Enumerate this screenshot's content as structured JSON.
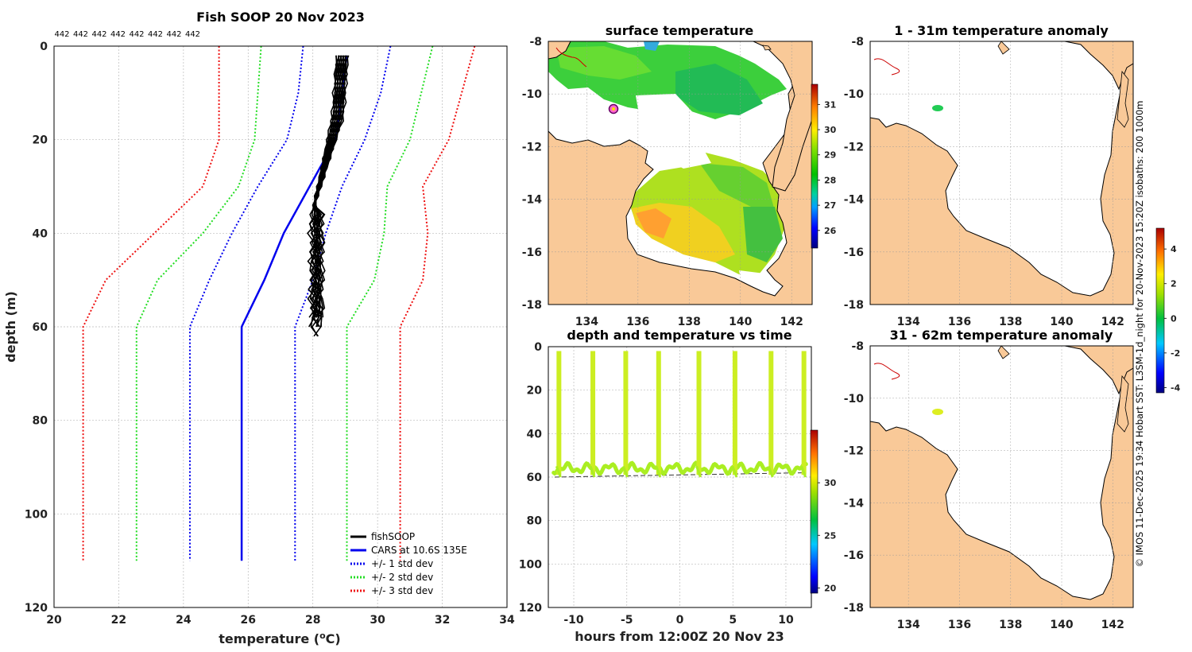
{
  "chart_data": [
    {
      "type": "line",
      "id": "profile",
      "title": "Fish SOOP 20 Nov 2023",
      "xlabel": "temperature (°C)",
      "xlabel_main": "temperature (",
      "xlabel_sup": "o",
      "xlabel_unit": "C)",
      "ylabel": "depth (m)",
      "xlim": [
        20,
        34
      ],
      "ylim": [
        120,
        0
      ],
      "xticks": [
        20,
        22,
        24,
        26,
        28,
        30,
        32,
        34
      ],
      "yticks": [
        0,
        20,
        40,
        60,
        80,
        100,
        120
      ],
      "top_labels": [
        "442",
        "442",
        "442",
        "442",
        "442",
        "442",
        "442",
        "442"
      ],
      "legend": [
        "fishSOOP",
        "CARS at 10.6S 135E",
        "+/- 1 std dev",
        "+/- 2 std dev",
        "+/- 3 std dev"
      ],
      "series": [
        {
          "name": "CARS",
          "color": "#0000ee",
          "points": [
            [
              29.05,
              2
            ],
            [
              28.9,
              10
            ],
            [
              28.7,
              20
            ],
            [
              27.9,
              30
            ],
            [
              27.1,
              40
            ],
            [
              26.5,
              50
            ],
            [
              25.8,
              60
            ],
            [
              25.8,
              110
            ]
          ]
        },
        {
          "name": "+1 std",
          "color": "#0000ee",
          "points": [
            [
              30.4,
              0
            ],
            [
              30.1,
              10
            ],
            [
              29.6,
              20
            ],
            [
              28.9,
              30
            ],
            [
              28.4,
              40
            ],
            [
              28.0,
              50
            ],
            [
              27.45,
              60
            ],
            [
              27.45,
              110
            ]
          ]
        },
        {
          "name": "-1 std",
          "color": "#0000ee",
          "points": [
            [
              27.7,
              0
            ],
            [
              27.55,
              10
            ],
            [
              27.2,
              20
            ],
            [
              26.3,
              30
            ],
            [
              25.5,
              40
            ],
            [
              24.8,
              50
            ],
            [
              24.2,
              60
            ],
            [
              24.2,
              110
            ]
          ]
        },
        {
          "name": "+2 std",
          "color": "#22dd22",
          "points": [
            [
              31.7,
              0
            ],
            [
              31.35,
              10
            ],
            [
              31.0,
              20
            ],
            [
              30.3,
              30
            ],
            [
              30.2,
              40
            ],
            [
              29.9,
              50
            ],
            [
              29.05,
              60
            ],
            [
              29.05,
              110
            ]
          ]
        },
        {
          "name": "-2 std",
          "color": "#22dd22",
          "points": [
            [
              26.4,
              0
            ],
            [
              26.3,
              10
            ],
            [
              26.2,
              20
            ],
            [
              25.7,
              30
            ],
            [
              24.6,
              40
            ],
            [
              23.2,
              50
            ],
            [
              22.55,
              60
            ],
            [
              22.55,
              110
            ]
          ]
        },
        {
          "name": "+3 std",
          "color": "#ee1111",
          "points": [
            [
              33.0,
              0
            ],
            [
              32.6,
              10
            ],
            [
              32.2,
              20
            ],
            [
              31.4,
              30
            ],
            [
              31.55,
              40
            ],
            [
              31.4,
              50
            ],
            [
              30.7,
              60
            ],
            [
              30.7,
              110
            ]
          ]
        },
        {
          "name": "-3 std",
          "color": "#ee1111",
          "points": [
            [
              25.1,
              0
            ],
            [
              25.1,
              10
            ],
            [
              25.1,
              20
            ],
            [
              24.6,
              30
            ],
            [
              23.1,
              40
            ],
            [
              21.6,
              50
            ],
            [
              20.9,
              60
            ],
            [
              20.9,
              110
            ]
          ]
        }
      ]
    },
    {
      "type": "heatmap",
      "id": "surface",
      "title": "surface temperature",
      "xlim": [
        132.5,
        142.8
      ],
      "ylim": [
        -18,
        -8
      ],
      "xticks": [
        134,
        136,
        138,
        140,
        142
      ],
      "yticks": [
        -8,
        -10,
        -12,
        -14,
        -16,
        -18
      ],
      "colorbar": {
        "range": [
          25.3,
          31.8
        ],
        "ticks": [
          26,
          27,
          28,
          29,
          30,
          31
        ]
      }
    },
    {
      "type": "scatter",
      "id": "timeseries",
      "title": "depth and temperature vs time",
      "xlabel": "hours from 12:00Z 20 Nov 23",
      "xlim": [
        -12.4,
        12.4
      ],
      "ylim": [
        120,
        0
      ],
      "xticks": [
        -10,
        -5,
        0,
        5,
        10
      ],
      "yticks": [
        0,
        20,
        40,
        60,
        80,
        100,
        120
      ],
      "dive_times": [
        -11.4,
        -8.2,
        -5.1,
        -2.0,
        1.8,
        5.2,
        8.6,
        11.7
      ],
      "bottom_depth": 57,
      "colorbar": {
        "range": [
          19.5,
          35
        ],
        "ticks": [
          20,
          25,
          30
        ]
      }
    },
    {
      "type": "heatmap",
      "id": "anom1",
      "title": "1 - 31m temperature anomaly",
      "xlim": [
        132.5,
        142.8
      ],
      "ylim": [
        -18,
        -8
      ],
      "xticks": [
        134,
        136,
        138,
        140,
        142
      ],
      "yticks": [
        -8,
        -10,
        -12,
        -14,
        -16,
        -18
      ],
      "marker": [
        135.05,
        -10.55
      ]
    },
    {
      "type": "heatmap",
      "id": "anom2",
      "title": "31 - 62m temperature anomaly",
      "xlim": [
        132.5,
        142.8
      ],
      "ylim": [
        -18,
        -8
      ],
      "xticks": [
        134,
        136,
        138,
        140,
        142
      ],
      "yticks": [
        -8,
        -10,
        -12,
        -14,
        -16,
        -18
      ],
      "marker": [
        135.05,
        -10.55
      ]
    },
    {
      "type": "colorbar",
      "id": "anom_cbar",
      "range": [
        -4.3,
        5.2
      ],
      "ticks": [
        -4,
        -2,
        0,
        2,
        4
      ]
    }
  ],
  "credit": "© IMOS 11-Dec-2025 19:34 Hobart SST: L3SM-1d_night for 20-Nov-2023 15:20Z isobaths: 200  1000m",
  "colors": {
    "land": "#f9c998",
    "coast": "#000000",
    "river": "#cc0000",
    "fishsoop": "#000000",
    "track": "#ccee22"
  }
}
